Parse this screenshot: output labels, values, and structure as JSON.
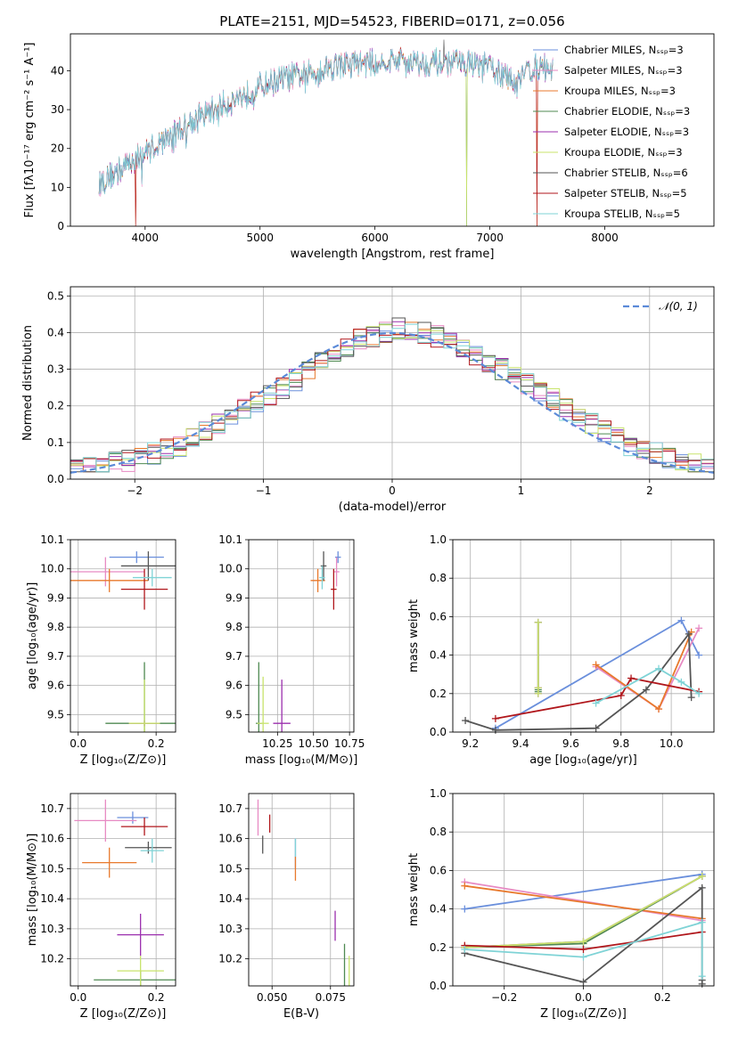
{
  "colors": {
    "chabrier_miles": "#6a8fdc",
    "salpeter_miles": "#e78ac3",
    "kroupa_miles": "#e8792c",
    "chabrier_elodie": "#4f8a52",
    "salpeter_elodie": "#9b2fae",
    "kroupa_elodie": "#c8e36b",
    "chabrier_stelib": "#555555",
    "salpeter_stelib": "#b0161b",
    "kroupa_stelib": "#7fd3d6",
    "normal": "#5b8ad8",
    "grid": "#b0b0b0"
  },
  "chart_data": [
    {
      "id": "spectrum",
      "type": "line",
      "title": "PLATE=2151, MJD=54523, FIBERID=0171, z=0.056",
      "xlabel": "wavelength [Angstrom, rest frame]",
      "ylabel": "Flux [fλ10⁻¹⁷ erg cm⁻² s⁻¹ A⁻¹]",
      "xlim": [
        3350,
        8950
      ],
      "ylim": [
        0,
        49.5
      ],
      "xticks": [
        4000,
        5000,
        6000,
        7000,
        8000
      ],
      "yticks": [
        0,
        10,
        20,
        30,
        40
      ],
      "grid": false,
      "legend": "right",
      "legend_entries": [
        "Chabrier MILES, Nₛₛₚ=3",
        "Salpeter MILES, Nₛₛₚ=3",
        "Kroupa MILES, Nₛₛₚ=3",
        "Chabrier ELODIE, Nₛₛₚ=3",
        "Salpeter ELODIE, Nₛₛₚ=3",
        "Kroupa ELODIE, Nₛₛₚ=3",
        "Chabrier STELIB, Nₛₛₚ=6",
        "Salpeter STELIB, Nₛₛₚ=5",
        "Kroupa STELIB, Nₛₛₚ=5"
      ],
      "continuum": [
        [
          3600,
          11
        ],
        [
          3750,
          14
        ],
        [
          3900,
          17
        ],
        [
          4000,
          19
        ],
        [
          4150,
          22
        ],
        [
          4300,
          25
        ],
        [
          4450,
          28
        ],
        [
          4600,
          30
        ],
        [
          4800,
          33
        ],
        [
          5000,
          36
        ],
        [
          5200,
          38
        ],
        [
          5400,
          39
        ],
        [
          5600,
          41
        ],
        [
          5800,
          42
        ],
        [
          6000,
          42
        ],
        [
          6200,
          43
        ],
        [
          6400,
          42
        ],
        [
          6600,
          42
        ],
        [
          6800,
          42
        ],
        [
          7000,
          41
        ],
        [
          7100,
          39
        ],
        [
          7200,
          37
        ],
        [
          7300,
          40
        ],
        [
          7450,
          41
        ],
        [
          7550,
          40
        ]
      ],
      "notes": [
        "single-valued flux dips reach 0 near 3920, 6800 and 7410 Angstrom"
      ]
    },
    {
      "id": "residuals",
      "type": "histogram",
      "xlabel": "(data-model)/error",
      "ylabel": "Normed distribution",
      "xlim": [
        -2.5,
        2.5
      ],
      "ylim": [
        0,
        0.525
      ],
      "xticks": [
        -2,
        -1,
        0,
        1,
        2
      ],
      "yticks": [
        0,
        0.1,
        0.2,
        0.3,
        0.4,
        0.5
      ],
      "grid": true,
      "legend": "top-right",
      "legend_entries": [
        "𝒩(0, 1)"
      ],
      "bin_width": 0.1,
      "bin_start": -2.5,
      "base_profile": [
        0.03,
        0.03,
        0.04,
        0.05,
        0.05,
        0.06,
        0.07,
        0.08,
        0.09,
        0.11,
        0.13,
        0.15,
        0.17,
        0.19,
        0.21,
        0.23,
        0.25,
        0.27,
        0.3,
        0.32,
        0.34,
        0.36,
        0.38,
        0.39,
        0.4,
        0.41,
        0.41,
        0.4,
        0.39,
        0.38,
        0.36,
        0.34,
        0.32,
        0.3,
        0.28,
        0.26,
        0.24,
        0.22,
        0.19,
        0.17,
        0.15,
        0.13,
        0.11,
        0.09,
        0.08,
        0.07,
        0.06,
        0.05,
        0.04,
        0.03
      ],
      "normal": {
        "mean": 0,
        "sigma": 1
      }
    },
    {
      "id": "age_vs_z",
      "type": "scatter",
      "xlabel": "Z [log₁₀(Z/Z⊙)]",
      "ylabel": "age  [log₁₀(age/yr)]",
      "xlim": [
        -0.02,
        0.25
      ],
      "ylim": [
        9.44,
        10.1
      ],
      "xticks": [
        0.0,
        0.2
      ],
      "yticks": [
        9.5,
        9.6,
        9.7,
        9.8,
        9.9,
        10.0,
        10.1
      ],
      "grid": true,
      "points": [
        {
          "model": "chabrier_miles",
          "x": 0.15,
          "y": 10.04,
          "xerr": 0.07,
          "yerr": 0.02
        },
        {
          "model": "salpeter_miles",
          "x": 0.07,
          "y": 9.99,
          "xerr": 0.1,
          "yerr": 0.05
        },
        {
          "model": "kroupa_miles",
          "x": 0.08,
          "y": 9.96,
          "xerr": 0.1,
          "yerr": 0.04
        },
        {
          "model": "chabrier_elodie",
          "x": 0.17,
          "y": 9.47,
          "xerr": 0.1,
          "yerr": 0.21
        },
        {
          "model": "salpeter_elodie",
          "x": 0.17,
          "y": 9.47,
          "xerr": 0.04,
          "yerr": 0.01
        },
        {
          "model": "kroupa_elodie",
          "x": 0.17,
          "y": 9.47,
          "xerr": 0.04,
          "yerr": 0.15
        },
        {
          "model": "chabrier_stelib",
          "x": 0.18,
          "y": 10.01,
          "xerr": 0.07,
          "yerr": 0.05
        },
        {
          "model": "salpeter_stelib",
          "x": 0.17,
          "y": 9.93,
          "xerr": 0.06,
          "yerr": 0.07
        },
        {
          "model": "kroupa_stelib",
          "x": 0.19,
          "y": 9.97,
          "xerr": 0.05,
          "yerr": 0.03
        }
      ]
    },
    {
      "id": "age_vs_mass",
      "type": "scatter",
      "xlabel": "mass [log₁₀(M/M⊙)]",
      "ylabel": "",
      "xlim": [
        10.05,
        10.78
      ],
      "ylim": [
        9.44,
        10.1
      ],
      "xticks": [
        10.25,
        10.5,
        10.75
      ],
      "yticks": [
        9.5,
        9.6,
        9.7,
        9.8,
        9.9,
        10.0,
        10.1
      ],
      "grid": true,
      "points": [
        {
          "model": "chabrier_miles",
          "x": 10.67,
          "y": 10.04,
          "xerr": 0.02,
          "yerr": 0.02
        },
        {
          "model": "salpeter_miles",
          "x": 10.66,
          "y": 9.99,
          "xerr": 0.02,
          "yerr": 0.05
        },
        {
          "model": "kroupa_miles",
          "x": 10.53,
          "y": 9.96,
          "xerr": 0.05,
          "yerr": 0.04
        },
        {
          "model": "chabrier_elodie",
          "x": 10.12,
          "y": 9.47,
          "xerr": 0.02,
          "yerr": 0.21
        },
        {
          "model": "salpeter_elodie",
          "x": 10.28,
          "y": 9.47,
          "xerr": 0.06,
          "yerr": 0.15
        },
        {
          "model": "kroupa_elodie",
          "x": 10.15,
          "y": 9.47,
          "xerr": 0.04,
          "yerr": 0.16
        },
        {
          "model": "chabrier_stelib",
          "x": 10.57,
          "y": 10.01,
          "xerr": 0.02,
          "yerr": 0.05
        },
        {
          "model": "salpeter_stelib",
          "x": 10.64,
          "y": 9.93,
          "xerr": 0.02,
          "yerr": 0.07
        },
        {
          "model": "kroupa_stelib",
          "x": 10.56,
          "y": 9.97,
          "xerr": 0.02,
          "yerr": 0.04
        }
      ]
    },
    {
      "id": "weight_vs_age",
      "type": "line",
      "xlabel": "age  [log₁₀(age/yr)]",
      "ylabel": "mass weight",
      "xlim": [
        9.13,
        10.17
      ],
      "ylim": [
        0,
        1
      ],
      "xticks": [
        9.2,
        9.4,
        9.6,
        9.8,
        10.0
      ],
      "yticks": [
        0.0,
        0.2,
        0.4,
        0.6,
        0.8,
        1.0
      ],
      "grid": true,
      "series": [
        {
          "model": "chabrier_miles",
          "x": [
            9.3,
            10.04,
            10.11
          ],
          "y": [
            0.02,
            0.58,
            0.4
          ]
        },
        {
          "model": "salpeter_miles",
          "x": [
            9.7,
            9.95,
            10.11
          ],
          "y": [
            0.34,
            0.12,
            0.54
          ]
        },
        {
          "model": "kroupa_miles",
          "x": [
            9.7,
            9.95,
            10.08
          ],
          "y": [
            0.35,
            0.12,
            0.52
          ]
        },
        {
          "model": "chabrier_elodie",
          "x": [
            9.47,
            9.47,
            9.47
          ],
          "y": [
            0.57,
            0.22,
            0.21
          ]
        },
        {
          "model": "salpeter_elodie",
          "x": [
            9.47,
            9.47,
            9.47
          ],
          "y": [
            0.57,
            0.23,
            0.2
          ]
        },
        {
          "model": "kroupa_elodie",
          "x": [
            9.47,
            9.47,
            9.47
          ],
          "y": [
            0.57,
            0.23,
            0.2
          ]
        },
        {
          "model": "chabrier_stelib",
          "x": [
            9.18,
            9.3,
            9.7,
            9.9,
            10.07,
            10.08
          ],
          "y": [
            0.06,
            0.01,
            0.02,
            0.22,
            0.51,
            0.18
          ]
        },
        {
          "model": "salpeter_stelib",
          "x": [
            9.3,
            9.8,
            9.84,
            10.11
          ],
          "y": [
            0.07,
            0.19,
            0.28,
            0.21
          ]
        },
        {
          "model": "kroupa_stelib",
          "x": [
            9.7,
            9.95,
            10.04,
            10.11
          ],
          "y": [
            0.15,
            0.33,
            0.26,
            0.2
          ]
        }
      ]
    },
    {
      "id": "mass_vs_z",
      "type": "scatter",
      "xlabel": "Z [log₁₀(Z/Z⊙)]",
      "ylabel": "mass [log₁₀(M/M⊙)]",
      "xlim": [
        -0.02,
        0.25
      ],
      "ylim": [
        10.11,
        10.75
      ],
      "xticks": [
        0.0,
        0.2
      ],
      "yticks": [
        10.2,
        10.3,
        10.4,
        10.5,
        10.6,
        10.7
      ],
      "grid": true,
      "points": [
        {
          "model": "chabrier_miles",
          "x": 0.14,
          "y": 10.67,
          "xerr": 0.04,
          "yerr": 0.02
        },
        {
          "model": "salpeter_miles",
          "x": 0.07,
          "y": 10.66,
          "xerr": 0.08,
          "yerr": 0.07
        },
        {
          "model": "kroupa_miles",
          "x": 0.08,
          "y": 10.52,
          "xerr": 0.07,
          "yerr": 0.05
        },
        {
          "model": "chabrier_elodie",
          "x": 0.16,
          "y": 10.13,
          "xerr": 0.12,
          "yerr": 0.03
        },
        {
          "model": "salpeter_elodie",
          "x": 0.16,
          "y": 10.28,
          "xerr": 0.06,
          "yerr": 0.07
        },
        {
          "model": "kroupa_elodie",
          "x": 0.16,
          "y": 10.16,
          "xerr": 0.06,
          "yerr": 0.05
        },
        {
          "model": "chabrier_stelib",
          "x": 0.18,
          "y": 10.57,
          "xerr": 0.06,
          "yerr": 0.02
        },
        {
          "model": "salpeter_stelib",
          "x": 0.17,
          "y": 10.64,
          "xerr": 0.06,
          "yerr": 0.03
        },
        {
          "model": "kroupa_stelib",
          "x": 0.19,
          "y": 10.56,
          "xerr": 0.03,
          "yerr": 0.04
        }
      ]
    },
    {
      "id": "mass_vs_ebv",
      "type": "scatter",
      "xlabel": "E(B-V)",
      "ylabel": "",
      "xlim": [
        0.04,
        0.085
      ],
      "ylim": [
        10.11,
        10.75
      ],
      "xticks": [
        0.05,
        0.075
      ],
      "xtick_labels": [
        "0.050",
        "0.075"
      ],
      "yticks": [
        10.2,
        10.3,
        10.4,
        10.5,
        10.6,
        10.7
      ],
      "grid": true,
      "points": [
        {
          "model": "chabrier_miles",
          "x": 0.06,
          "y": 10.55,
          "yerr": 0.05
        },
        {
          "model": "salpeter_miles",
          "x": 0.044,
          "y": 10.67,
          "yerr": 0.06
        },
        {
          "model": "kroupa_miles",
          "x": 0.06,
          "y": 10.5,
          "yerr": 0.04
        },
        {
          "model": "chabrier_elodie",
          "x": 0.081,
          "y": 10.18,
          "yerr": 0.07
        },
        {
          "model": "salpeter_elodie",
          "x": 0.077,
          "y": 10.31,
          "yerr": 0.05
        },
        {
          "model": "kroupa_elodie",
          "x": 0.083,
          "y": 10.16,
          "yerr": 0.05
        },
        {
          "model": "chabrier_stelib",
          "x": 0.046,
          "y": 10.58,
          "yerr": 0.03
        },
        {
          "model": "salpeter_stelib",
          "x": 0.049,
          "y": 10.65,
          "yerr": 0.03
        },
        {
          "model": "kroupa_stelib",
          "x": 0.06,
          "y": 10.57,
          "yerr": 0.03
        }
      ]
    },
    {
      "id": "weight_vs_z",
      "type": "line",
      "xlabel": "Z [log₁₀(Z/Z⊙)]",
      "ylabel": "mass weight",
      "xlim": [
        -0.33,
        0.33
      ],
      "ylim": [
        0,
        1
      ],
      "xticks": [
        -0.2,
        0.0,
        0.2
      ],
      "yticks": [
        0.0,
        0.2,
        0.4,
        0.6,
        0.8,
        1.0
      ],
      "grid": true,
      "series": [
        {
          "model": "chabrier_miles",
          "x": [
            -0.3,
            0.3
          ],
          "y": [
            0.4,
            0.58
          ]
        },
        {
          "model": "salpeter_miles",
          "x": [
            -0.3,
            0.3
          ],
          "y": [
            0.54,
            0.34
          ]
        },
        {
          "model": "kroupa_miles",
          "x": [
            -0.3,
            0.3
          ],
          "y": [
            0.52,
            0.35
          ]
        },
        {
          "model": "chabrier_elodie",
          "x": [
            -0.3,
            0.0,
            0.3
          ],
          "y": [
            0.2,
            0.22,
            0.57
          ]
        },
        {
          "model": "salpeter_elodie",
          "x": [
            -0.3,
            0.0,
            0.3
          ],
          "y": [
            0.2,
            0.23,
            0.57
          ]
        },
        {
          "model": "kroupa_elodie",
          "x": [
            -0.3,
            0.0,
            0.3
          ],
          "y": [
            0.2,
            0.23,
            0.57
          ]
        },
        {
          "model": "chabrier_stelib",
          "x": [
            -0.3,
            0.0,
            0.3,
            0.3,
            0.3
          ],
          "y": [
            0.17,
            0.02,
            0.51,
            0.01,
            0.03
          ]
        },
        {
          "model": "salpeter_stelib",
          "x": [
            -0.3,
            0.0,
            0.3
          ],
          "y": [
            0.21,
            0.19,
            0.28
          ]
        },
        {
          "model": "kroupa_stelib",
          "x": [
            -0.3,
            0.0,
            0.3,
            0.3
          ],
          "y": [
            0.19,
            0.15,
            0.33,
            0.05
          ]
        }
      ]
    }
  ],
  "panel_order": [
    "spectrum",
    "residuals",
    "age_vs_z",
    "age_vs_mass",
    "weight_vs_age",
    "mass_vs_z",
    "mass_vs_ebv",
    "weight_vs_z"
  ]
}
